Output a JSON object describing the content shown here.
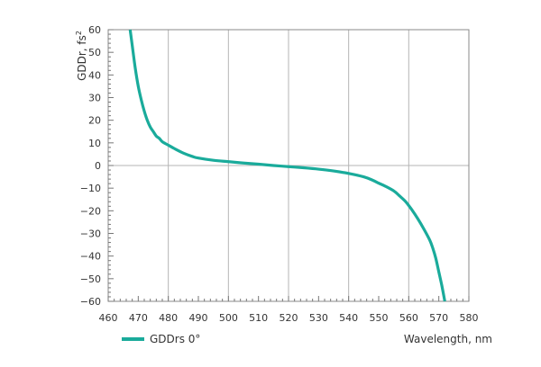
{
  "chart_data": {
    "type": "line",
    "xlabel": "Wavelength, nm",
    "ylabel": "GDDr, fs",
    "ylabel_superscript": "2",
    "xlim": [
      460,
      580
    ],
    "ylim": [
      -60,
      60
    ],
    "xticks": [
      460,
      470,
      480,
      490,
      500,
      510,
      520,
      530,
      540,
      550,
      560,
      570,
      580
    ],
    "yticks": [
      60,
      50,
      40,
      30,
      20,
      10,
      0,
      -10,
      -20,
      -30,
      -40,
      -50,
      -60
    ],
    "grid": true,
    "legend_position": "bottom-left",
    "series": [
      {
        "name": "GDDrs 0°",
        "color": "#1aab9b",
        "x": [
          467.3,
          468,
          469,
          470,
          471,
          472,
          473,
          474,
          475,
          476,
          477,
          478,
          480,
          482,
          485,
          488,
          490,
          495,
          500,
          505,
          510,
          515,
          520,
          525,
          530,
          535,
          540,
          545,
          548,
          550,
          552,
          555,
          557,
          559,
          561,
          563,
          565,
          567,
          568,
          569,
          570,
          571,
          572
        ],
        "y": [
          60,
          53,
          43,
          35,
          29,
          24,
          20,
          17,
          15,
          13,
          12,
          10.5,
          9,
          7.5,
          5.5,
          4,
          3.3,
          2.3,
          1.7,
          1.1,
          0.6,
          0,
          -0.5,
          -1,
          -1.6,
          -2.4,
          -3.5,
          -5,
          -6.5,
          -7.8,
          -9,
          -11.2,
          -13.5,
          -16,
          -19.5,
          -23.5,
          -28,
          -33,
          -36.5,
          -41,
          -47,
          -53,
          -60
        ]
      }
    ]
  }
}
